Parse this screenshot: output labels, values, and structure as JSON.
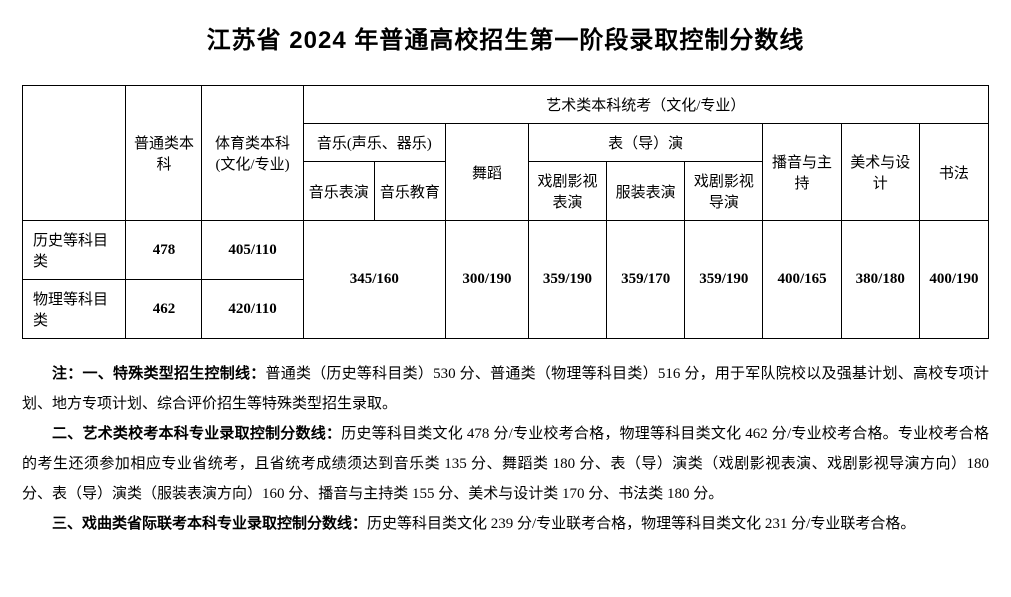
{
  "title": "江苏省 2024 年普通高校招生第一阶段录取控制分数线",
  "table": {
    "colwidths": [
      "110",
      "80",
      "105",
      "75",
      "75",
      "85",
      "80",
      "80",
      "80",
      "80",
      "80",
      "70"
    ],
    "hdr": {
      "row_label": "",
      "general": "普通类本科",
      "sports": "体育类本科(文化/专业)",
      "arts_group": "艺术类本科统考（文化/专业）",
      "music_group": "音乐(声乐、器乐)",
      "dance": "舞蹈",
      "acting_group": "表（导）演",
      "broadcast": "播音与主持",
      "fineart": "美术与设计",
      "calligraphy": "书法",
      "music_perf": "音乐表演",
      "music_edu": "音乐教育",
      "drama_film_act": "戏剧影视表演",
      "costume": "服装表演",
      "drama_film_dir": "戏剧影视导演"
    },
    "rows": [
      {
        "label": "历史等科目类",
        "general": "478",
        "sports": "405/110"
      },
      {
        "label": "物理等科目类",
        "general": "462",
        "sports": "420/110"
      }
    ],
    "merged": {
      "music": "345/160",
      "dance": "300/190",
      "drama_film_act": "359/190",
      "costume": "359/170",
      "drama_film_dir": "359/190",
      "broadcast": "400/165",
      "fineart": "380/180",
      "calligraphy": "400/190"
    }
  },
  "notes": {
    "prefix": "注：",
    "n1_label": "一、特殊类型招生控制线：",
    "n1_text": "普通类（历史等科目类）530 分、普通类（物理等科目类）516 分，用于军队院校以及强基计划、高校专项计划、地方专项计划、综合评价招生等特殊类型招生录取。",
    "n2_label": "二、艺术类校考本科专业录取控制分数线：",
    "n2_text": "历史等科目类文化 478 分/专业校考合格，物理等科目类文化 462 分/专业校考合格。专业校考合格的考生还须参加相应专业省统考，且省统考成绩须达到音乐类 135 分、舞蹈类 180 分、表（导）演类（戏剧影视表演、戏剧影视导演方向）180 分、表（导）演类（服装表演方向）160 分、播音与主持类 155 分、美术与设计类 170 分、书法类 180 分。",
    "n3_label": "三、戏曲类省际联考本科专业录取控制分数线：",
    "n3_text": "历史等科目类文化 239 分/专业联考合格，物理等科目类文化 231 分/专业联考合格。"
  },
  "style": {
    "bg": "#ffffff",
    "fg": "#000000",
    "border": "#000000",
    "title_fontsize": 24,
    "cell_fontsize": 15,
    "notes_fontsize": 15
  }
}
